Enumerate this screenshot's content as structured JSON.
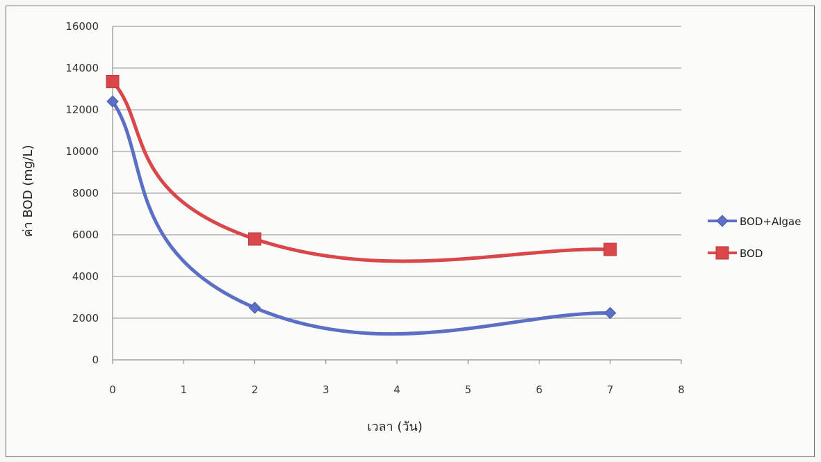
{
  "chart_data": {
    "type": "line",
    "title": "",
    "xlabel": "เวลา (วัน)",
    "ylabel": "ค่า BOD (mg/L)",
    "xlim": [
      0,
      8
    ],
    "ylim": [
      0,
      16000
    ],
    "xticks": [
      "0",
      "1",
      "2",
      "3",
      "4",
      "5",
      "6",
      "7",
      "8"
    ],
    "yticks": [
      "0",
      "2000",
      "4000",
      "6000",
      "8000",
      "10000",
      "12000",
      "14000",
      "16000"
    ],
    "grid": "horizontal",
    "smoothed": true,
    "legend_position": "right",
    "x": [
      0,
      2,
      7
    ],
    "series": [
      {
        "name": "BOD+Algae",
        "values": [
          12400,
          2500,
          2250
        ],
        "color": "#5b6fc4",
        "marker": "diamond"
      },
      {
        "name": "BOD",
        "values": [
          13350,
          5800,
          5300
        ],
        "color": "#d9474b",
        "marker": "square"
      }
    ]
  }
}
